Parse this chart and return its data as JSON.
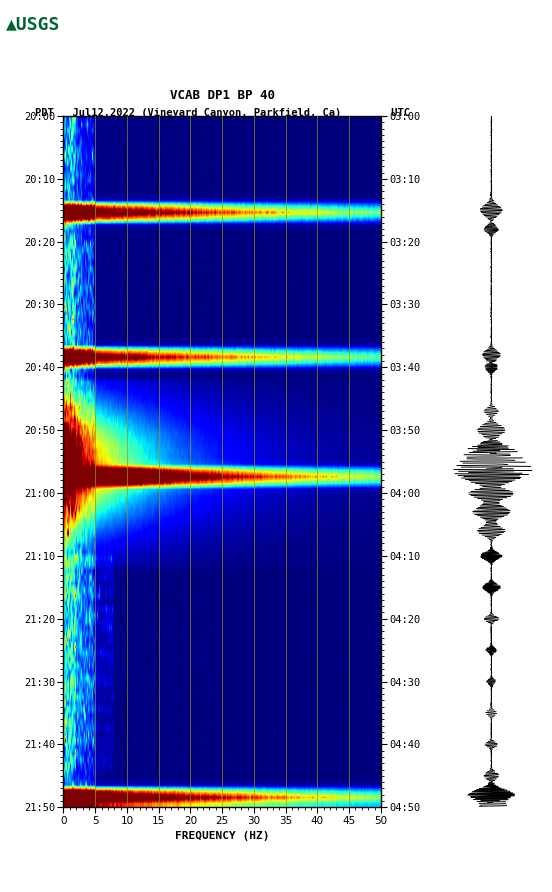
{
  "title_line1": "VCAB DP1 BP 40",
  "title_line2": "PDT   Jul12,2022 (Vineyard Canyon, Parkfield, Ca)        UTC",
  "xlabel": "FREQUENCY (HZ)",
  "freq_min": 0,
  "freq_max": 50,
  "time_ticks_pdt": [
    "20:00",
    "20:10",
    "20:20",
    "20:30",
    "20:40",
    "20:50",
    "21:00",
    "21:10",
    "21:20",
    "21:30",
    "21:40",
    "21:50"
  ],
  "time_ticks_utc": [
    "03:00",
    "03:10",
    "03:20",
    "03:30",
    "03:40",
    "03:50",
    "04:00",
    "04:10",
    "04:20",
    "04:30",
    "04:40",
    "04:50"
  ],
  "vertical_grid_freqs": [
    5,
    10,
    15,
    20,
    25,
    30,
    35,
    40,
    45
  ],
  "bg_color": "#ffffff",
  "spectrogram_colormap": "jet",
  "usgs_green": "#006633",
  "fig_width": 5.52,
  "fig_height": 8.92,
  "dpi": 100
}
